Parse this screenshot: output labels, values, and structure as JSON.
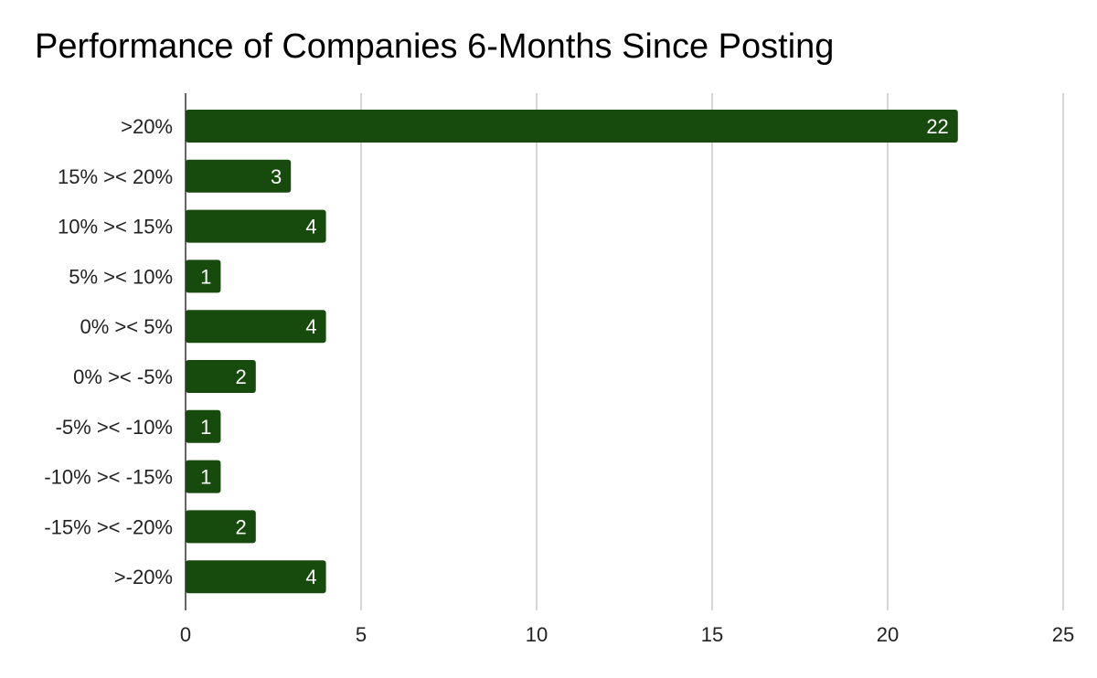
{
  "chart_data": {
    "type": "bar",
    "orientation": "horizontal",
    "title": "Performance of Companies 6-Months Since Posting",
    "categories": [
      ">20%",
      "15% >< 20%",
      "10% >< 15%",
      "5% >< 10%",
      "0% >< 5%",
      "0% >< -5%",
      "-5% >< -10%",
      "-10% >< -15%",
      "-15% >< -20%",
      ">-20%"
    ],
    "values": [
      22,
      3,
      4,
      1,
      4,
      2,
      1,
      1,
      2,
      4
    ],
    "xlim": [
      0,
      25
    ],
    "xticks": [
      0,
      5,
      10,
      15,
      20,
      25
    ],
    "xlabel": "",
    "ylabel": "",
    "grid": true,
    "data_labels": true,
    "bar_color": "#174a0d",
    "grid_color": "#c8c8c8"
  }
}
